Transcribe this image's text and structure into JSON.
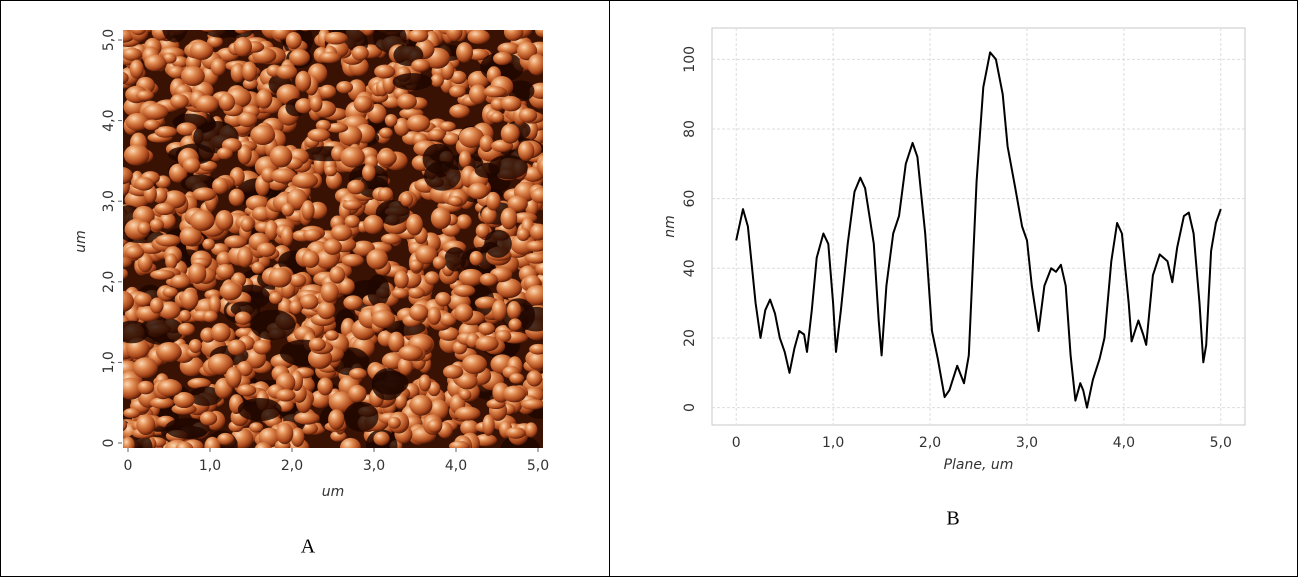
{
  "chart_data": [
    {
      "type": "image",
      "caption": "A",
      "xlabel": "um",
      "ylabel": "um",
      "xlim": [
        0,
        5
      ],
      "ylim": [
        0,
        5
      ],
      "xticks": [
        0,
        {
          "value": 1,
          "label": "1,0"
        },
        {
          "value": 2,
          "label": "2,0"
        },
        {
          "value": 3,
          "label": "3,0"
        },
        {
          "value": 4,
          "label": "4,0"
        },
        {
          "value": 5,
          "label": "5,0"
        }
      ],
      "yticks": [
        0,
        {
          "value": 1,
          "label": "1,0"
        },
        {
          "value": 2,
          "label": "2,0"
        },
        {
          "value": 3,
          "label": "3,0"
        },
        {
          "value": 4,
          "label": "4,0"
        },
        {
          "value": 5,
          "label": "5,0"
        }
      ]
    },
    {
      "type": "line",
      "caption": "B",
      "xlabel": "Plane, um",
      "ylabel": "nm",
      "xlim": [
        -0.25,
        5.25
      ],
      "ylim": [
        -5,
        109
      ],
      "xticks": [
        0,
        {
          "value": 1,
          "label": "1,0"
        },
        {
          "value": 2,
          "label": "2,0"
        },
        {
          "value": 3,
          "label": "3,0"
        },
        {
          "value": 4,
          "label": "4,0"
        },
        {
          "value": 5,
          "label": "5,0"
        }
      ],
      "yticks": [
        0,
        20,
        40,
        60,
        80,
        100
      ],
      "grid": true,
      "color": "#000000",
      "x": [
        0,
        0.07,
        0.12,
        0.2,
        0.25,
        0.3,
        0.35,
        0.4,
        0.45,
        0.5,
        0.55,
        0.6,
        0.65,
        0.7,
        0.73,
        0.78,
        0.83,
        0.9,
        0.95,
        1.0,
        1.03,
        1.08,
        1.15,
        1.22,
        1.28,
        1.33,
        1.42,
        1.47,
        1.5,
        1.55,
        1.62,
        1.68,
        1.75,
        1.82,
        1.87,
        1.95,
        2.02,
        2.08,
        2.15,
        2.2,
        2.28,
        2.35,
        2.4,
        2.48,
        2.55,
        2.62,
        2.68,
        2.75,
        2.8,
        2.88,
        2.95,
        3.0,
        3.05,
        3.12,
        3.18,
        3.25,
        3.3,
        3.35,
        3.4,
        3.45,
        3.5,
        3.55,
        3.58,
        3.62,
        3.68,
        3.75,
        3.8,
        3.87,
        3.93,
        3.98,
        4.05,
        4.08,
        4.15,
        4.2,
        4.23,
        4.3,
        4.37,
        4.45,
        4.5,
        4.55,
        4.62,
        4.67,
        4.72,
        4.78,
        4.82,
        4.85,
        4.9,
        4.95,
        5.0
      ],
      "values": [
        48,
        57,
        52,
        30,
        20,
        28,
        31,
        27,
        20,
        16,
        10,
        17,
        22,
        21,
        16,
        28,
        43,
        50,
        47,
        30,
        16,
        28,
        47,
        62,
        66,
        63,
        47,
        25,
        15,
        35,
        50,
        55,
        70,
        76,
        72,
        50,
        22,
        14,
        3,
        5,
        12,
        7,
        15,
        65,
        92,
        102,
        100,
        90,
        75,
        63,
        52,
        48,
        35,
        22,
        35,
        40,
        39,
        41,
        35,
        15,
        2,
        7,
        5,
        0,
        8,
        14,
        20,
        42,
        53,
        50,
        30,
        19,
        25,
        21,
        18,
        38,
        44,
        42,
        36,
        46,
        55,
        56,
        50,
        30,
        13,
        18,
        45,
        53,
        57
      ]
    }
  ]
}
